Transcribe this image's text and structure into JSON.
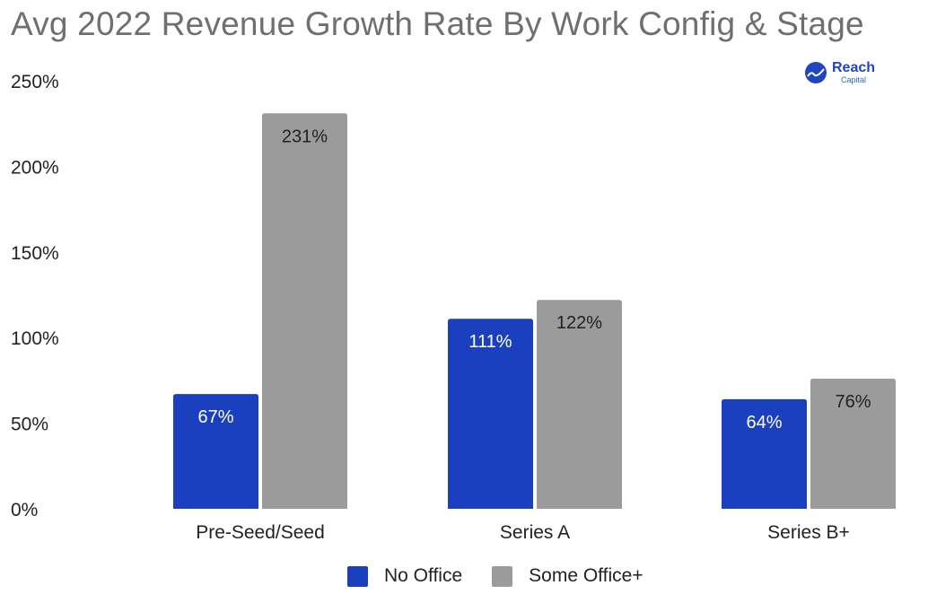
{
  "chart_data": {
    "type": "bar",
    "title": "Avg 2022 Revenue Growth Rate By Work Config & Stage",
    "xlabel": "",
    "ylabel": "",
    "categories": [
      "Pre-Seed/Seed",
      "Series A",
      "Series B+"
    ],
    "series": [
      {
        "name": "No Office",
        "color": "#1b40bf",
        "label_color": "#ffffff",
        "values": [
          67,
          111,
          64
        ],
        "labels": [
          "67%",
          "111%",
          "64%"
        ]
      },
      {
        "name": "Some Office+",
        "color": "#9b9b9b",
        "label_color": "#222222",
        "values": [
          231,
          122,
          76
        ],
        "labels": [
          "231%",
          "122%",
          "76%"
        ]
      }
    ],
    "ylim": [
      0,
      250
    ],
    "yticks": [
      0,
      50,
      100,
      150,
      200,
      250
    ],
    "ytick_labels": [
      "0%",
      "50%",
      "100%",
      "150%",
      "200%",
      "250%"
    ],
    "grid": false,
    "legend_position": "bottom"
  },
  "branding": {
    "name": "Reach",
    "sub": "Capital"
  }
}
